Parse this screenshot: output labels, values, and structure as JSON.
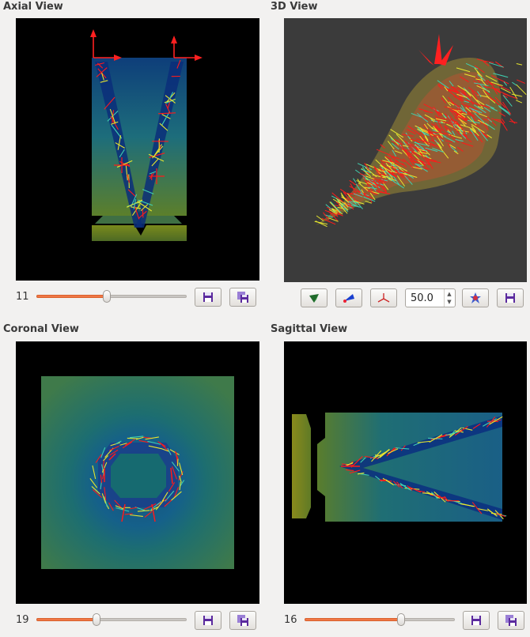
{
  "panels": {
    "axial": {
      "title": "Axial View",
      "slice": "11",
      "slider_value": 0.47
    },
    "view3d": {
      "title": "3D View",
      "spin_value": "50.0"
    },
    "coronal": {
      "title": "Coronal View",
      "slice": "19",
      "slider_value": 0.4
    },
    "sagittal": {
      "title": "Sagittal View",
      "slice": "16",
      "slider_value": 0.64
    }
  },
  "icons": {
    "save": "floppy-disk-icon",
    "save_all": "stacked-floppy-icon",
    "surface": "leaf-surface-icon",
    "glyphs": "cone-glyph-icon",
    "axes": "axes-icon",
    "reset_camera": "star-burst-icon"
  },
  "colors": {
    "window_bg": "#f2f1f0",
    "viewport_2d_bg": "#000000",
    "viewport_3d_bg": "#3b3b3b",
    "slider_fill": "#f07746",
    "glyph_red": "#ff1a1a",
    "glyph_yellow": "#e6e62e",
    "glyph_cyan": "#3fd0b0",
    "field_teal": "#1a6f72",
    "field_olive": "#6b7f1f"
  }
}
